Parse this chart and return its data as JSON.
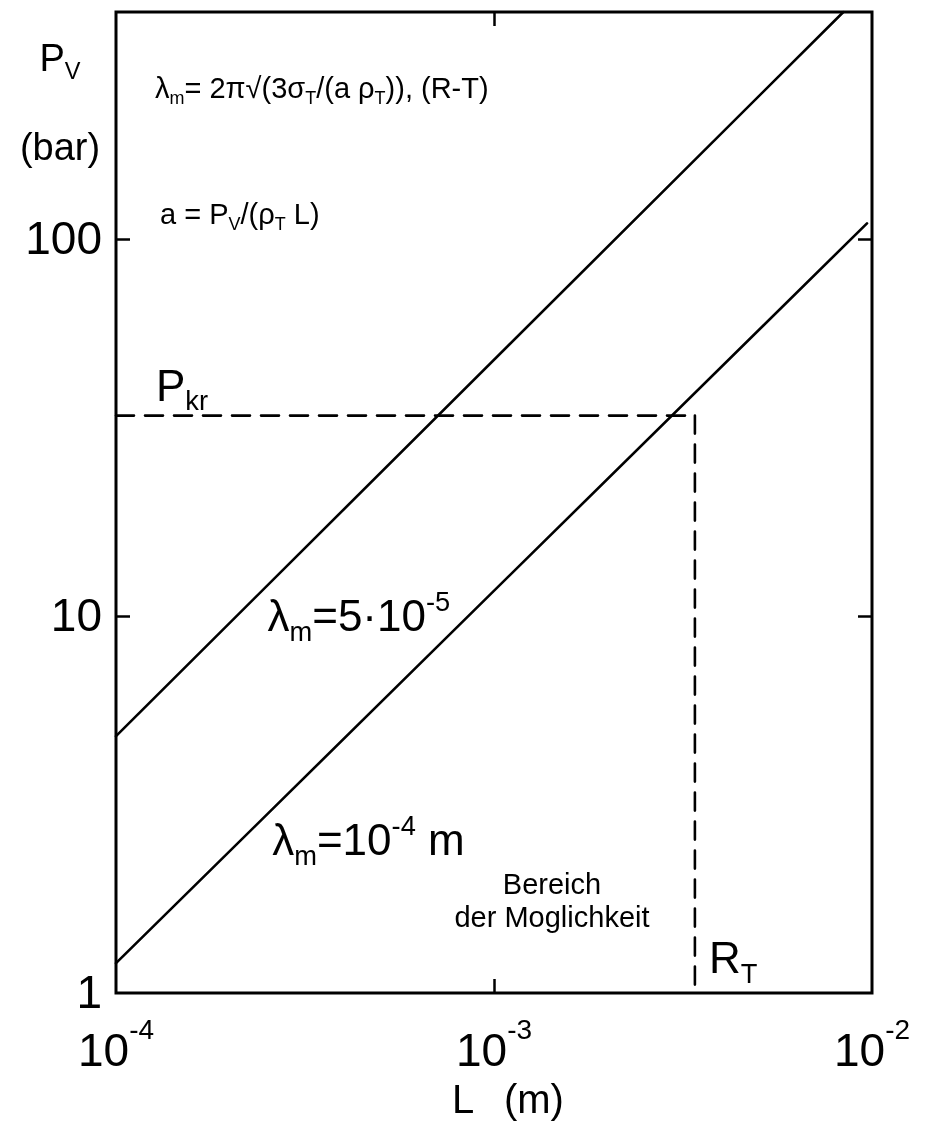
{
  "chart_data": {
    "type": "line",
    "xlabel": "L (m)",
    "ylabel": "P$_{V}$ (bar)",
    "log": "xy",
    "marker": "none",
    "xlim": [
      0.0001,
      0.01
    ],
    "xticks": [
      {
        "value": 0.0001,
        "label": "10$^{-4}$"
      },
      {
        "value": 0.001,
        "label": "10$^{-3}$"
      },
      {
        "value": 0.01,
        "label": "10$^{-2}$"
      }
    ],
    "ylim": [
      1,
      400
    ],
    "yticks": [
      1,
      10,
      100
    ],
    "series": [
      {
        "name": "λ$_{m}$=5·10$^{-5}$",
        "color": "#000000",
        "line_style": "solid",
        "x": [
          0.0001,
          0.0084
        ],
        "values": [
          4.8,
          400
        ]
      },
      {
        "name": "λ$_{m}$=10$^{-4}$ m",
        "color": "#000000",
        "line_style": "solid",
        "x": [
          0.0001,
          0.0097
        ],
        "values": [
          1.2,
          110
        ]
      },
      {
        "name": "P$_{kr}$",
        "color": "#000000",
        "line_style": "dashed",
        "x": [
          0.0001,
          0.0034
        ],
        "values": [
          34,
          34
        ]
      },
      {
        "name": "R$_{T}$",
        "color": "#000000",
        "line_style": "dashed",
        "x": [
          0.0034,
          0.0034
        ],
        "values": [
          34,
          1
        ]
      }
    ],
    "annotations": [
      "λ$_{m}$= 2π√(3σ$_{T}$/(a ρ$_{T}$)), (R-T)",
      "a = P$_{V}$/(ρ$_{T}$ L)",
      "Bereich\nder Moglichkeit"
    ]
  }
}
